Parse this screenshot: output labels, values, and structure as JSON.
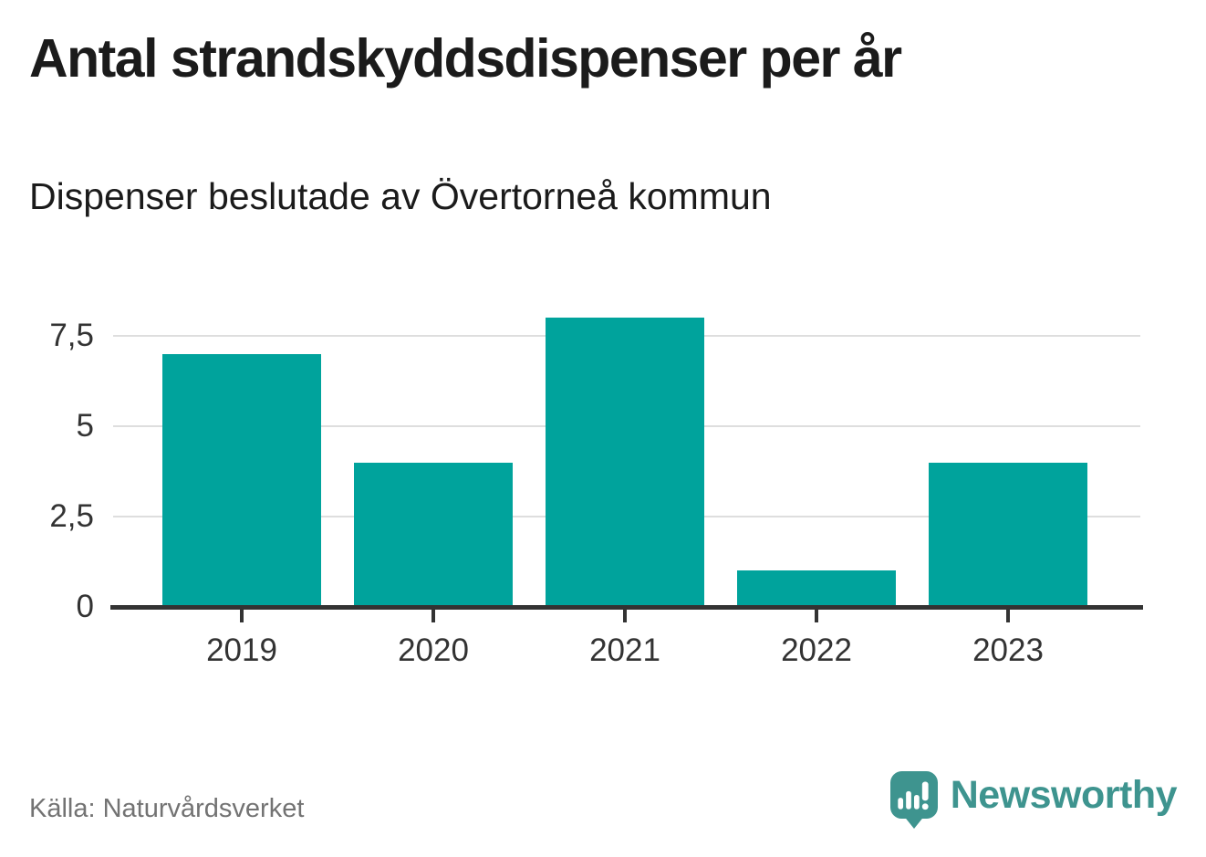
{
  "header": {
    "title": "Antal strandskyddsdispenser per år",
    "subtitle": "Dispenser beslutade av Övertorneå kommun"
  },
  "chart_data": {
    "type": "bar",
    "title": "Antal strandskyddsdispenser per år",
    "subtitle": "Dispenser beslutade av Övertorneå kommun",
    "categories": [
      "2019",
      "2020",
      "2021",
      "2022",
      "2023"
    ],
    "values": [
      7,
      4,
      8,
      1,
      4
    ],
    "xlabel": "",
    "ylabel": "",
    "ylim": [
      0,
      8
    ],
    "yticks": [
      0,
      2.5,
      5,
      7.5
    ],
    "ytick_labels": [
      "0",
      "2,5",
      "5",
      "7,5"
    ],
    "grid": true,
    "legend": false,
    "colors": {
      "bar": "#00a39c",
      "grid": "#dedede",
      "axis": "#333333",
      "tick_label": "#333333"
    }
  },
  "footer": {
    "source": "Källa: Naturvårdsverket",
    "brand": "Newsworthy",
    "brand_color": "#3e948f"
  }
}
